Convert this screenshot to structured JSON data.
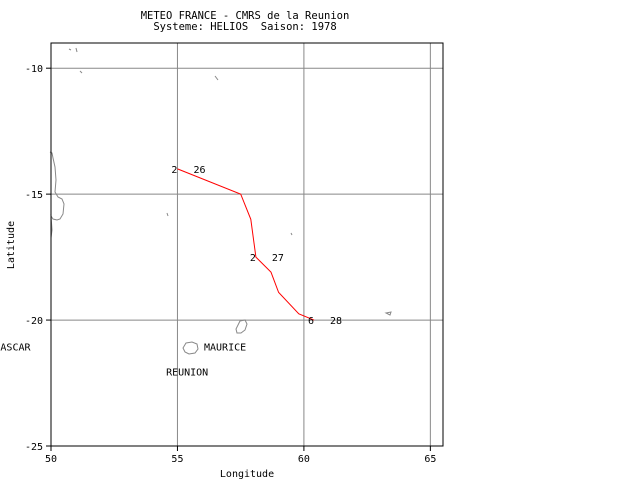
{
  "header": {
    "line1": "METEO FRANCE - CMRS de la Reunion",
    "line2": "Systeme: HELIOS  Saison: 1978"
  },
  "chart_data": {
    "type": "line",
    "xlabel": "Longitude",
    "ylabel": "Latitude",
    "xlim": [
      50,
      65.5
    ],
    "ylim": [
      -25,
      -9
    ],
    "xticks": [
      {
        "value": 50,
        "label": "50"
      },
      {
        "value": 55,
        "label": "55"
      },
      {
        "value": 60,
        "label": "60"
      },
      {
        "value": 65,
        "label": "65"
      }
    ],
    "yticks": [
      {
        "value": -10,
        "label": "-10"
      },
      {
        "value": -15,
        "label": "-15"
      },
      {
        "value": -20,
        "label": "-20"
      },
      {
        "value": -25,
        "label": "-25"
      }
    ],
    "grid": true,
    "track": {
      "color": "#ff0000",
      "points": [
        {
          "lon": 55.0,
          "lat": -14.0
        },
        {
          "lon": 57.5,
          "lat": -15.0
        },
        {
          "lon": 57.9,
          "lat": -16.0
        },
        {
          "lon": 58.1,
          "lat": -17.5
        },
        {
          "lon": 58.7,
          "lat": -18.1
        },
        {
          "lon": 59.0,
          "lat": -18.9
        },
        {
          "lon": 59.8,
          "lat": -19.75
        },
        {
          "lon": 60.4,
          "lat": -20.0
        }
      ]
    },
    "track_labels": [
      {
        "lon": 55.0,
        "lat": -14.0,
        "intensity": "2",
        "day": "26"
      },
      {
        "lon": 58.1,
        "lat": -17.5,
        "intensity": "2",
        "day": "27"
      },
      {
        "lon": 60.4,
        "lat": -20.0,
        "intensity": "6",
        "day": "28"
      }
    ],
    "place_labels": [
      {
        "name": "MAURICE",
        "lon": 56.05,
        "lat": -21.05
      },
      {
        "name": "REUNION",
        "lon": 54.55,
        "lat": -22.05
      },
      {
        "name": "ASCAR",
        "lon": 48.0,
        "lat": -21.05
      }
    ]
  }
}
